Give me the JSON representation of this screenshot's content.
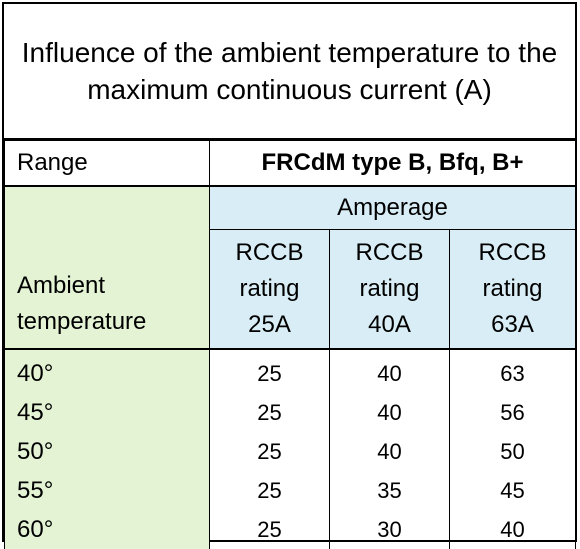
{
  "title": "Influence of the ambient temperature to the maximum continuous current (A)",
  "header": {
    "range_label": "Range",
    "product_label": "FRCdM type B, Bfq, B+",
    "ambient_label_line1": "Ambient",
    "ambient_label_line2": "temperature",
    "amperage_label": "Amperage"
  },
  "ratings": [
    {
      "line1": "RCCB",
      "line2": "rating",
      "line3": "25A"
    },
    {
      "line1": "RCCB",
      "line2": "rating",
      "line3": "40A"
    },
    {
      "line1": "RCCB",
      "line2": "rating",
      "line3": "63A"
    }
  ],
  "rows": [
    {
      "temp": "40°",
      "values": [
        "25",
        "40",
        "63"
      ]
    },
    {
      "temp": "45°",
      "values": [
        "25",
        "40",
        "56"
      ]
    },
    {
      "temp": "50°",
      "values": [
        "25",
        "40",
        "50"
      ]
    },
    {
      "temp": "55°",
      "values": [
        "25",
        "35",
        "45"
      ]
    },
    {
      "temp": "60°",
      "values": [
        "25",
        "30",
        "40"
      ]
    }
  ],
  "colors": {
    "green_cell": "#e3f3d4",
    "blue_cell": "#d8edf5"
  }
}
